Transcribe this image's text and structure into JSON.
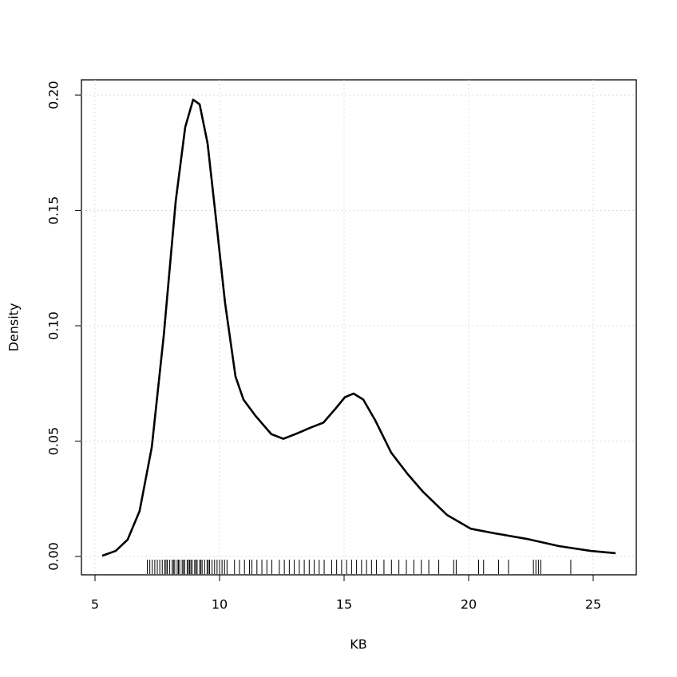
{
  "chart_data": {
    "type": "line",
    "xlabel": "KB",
    "ylabel": "Density",
    "x": [
      5.29,
      5.83,
      6.31,
      6.79,
      7.28,
      7.76,
      8.24,
      8.62,
      8.94,
      9.2,
      9.52,
      9.84,
      10.22,
      10.64,
      10.96,
      11.44,
      12.08,
      12.56,
      13.04,
      13.69,
      14.17,
      14.65,
      15.03,
      15.38,
      15.77,
      16.25,
      16.89,
      17.53,
      18.17,
      19.13,
      20.09,
      21.06,
      22.34,
      23.62,
      24.9,
      25.9
    ],
    "values": [
      0.0003,
      0.0024,
      0.0073,
      0.0197,
      0.0474,
      0.0958,
      0.154,
      0.186,
      0.198,
      0.196,
      0.179,
      0.148,
      0.11,
      0.078,
      0.068,
      0.061,
      0.053,
      0.051,
      0.053,
      0.056,
      0.058,
      0.064,
      0.069,
      0.0706,
      0.068,
      0.059,
      0.045,
      0.036,
      0.028,
      0.018,
      0.012,
      0.01,
      0.0076,
      0.0045,
      0.0024,
      0.0014
    ],
    "color": "#000000",
    "rug": [
      7.1,
      7.2,
      7.3,
      7.4,
      7.5,
      7.6,
      7.7,
      7.8,
      7.85,
      7.9,
      8.0,
      8.1,
      8.15,
      8.2,
      8.3,
      8.35,
      8.4,
      8.5,
      8.55,
      8.6,
      8.7,
      8.75,
      8.8,
      8.85,
      8.9,
      9.0,
      9.05,
      9.1,
      9.2,
      9.25,
      9.3,
      9.4,
      9.5,
      9.55,
      9.6,
      9.7,
      9.8,
      9.9,
      10.0,
      10.1,
      10.2,
      10.3,
      10.6,
      10.8,
      11.0,
      11.2,
      11.3,
      11.5,
      11.7,
      11.9,
      12.1,
      12.4,
      12.6,
      12.8,
      13.0,
      13.2,
      13.4,
      13.6,
      13.8,
      14.0,
      14.2,
      14.5,
      14.7,
      14.9,
      15.1,
      15.3,
      15.5,
      15.7,
      15.9,
      16.1,
      16.3,
      16.6,
      16.9,
      17.2,
      17.5,
      17.8,
      18.1,
      18.4,
      18.8,
      19.4,
      19.5,
      20.4,
      20.6,
      21.2,
      21.6,
      22.6,
      22.7,
      22.8,
      22.9,
      24.1
    ],
    "xlim": [
      4.455,
      26.73
    ],
    "ylim": [
      -0.00796,
      0.2066
    ],
    "xticks": [
      5,
      10,
      15,
      20,
      25
    ],
    "yticks": [
      {
        "value": 0,
        "label": "0.00"
      },
      {
        "value": 0.05,
        "label": "0.05"
      },
      {
        "value": 0.1,
        "label": "0.10"
      },
      {
        "value": 0.15,
        "label": "0.15"
      },
      {
        "value": 0.2,
        "label": "0.20"
      }
    ],
    "grid": true
  }
}
